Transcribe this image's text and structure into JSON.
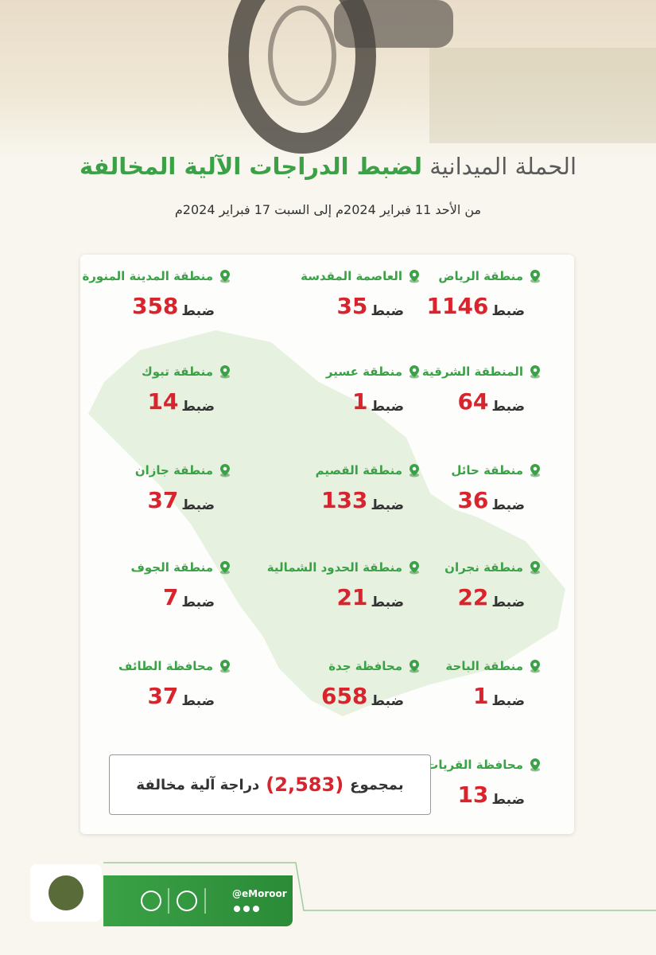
{
  "header": {
    "title_lead": "الحملة الميدانية",
    "title_emphasis": "لضبط الدراجات الآلية المخالفة",
    "subtitle": "من الأحد 11 فبراير 2024م إلى السبت 17 فبراير 2024م"
  },
  "count_word": "ضبط",
  "regions": [
    {
      "name": "منطقة الرياض",
      "count": "1146"
    },
    {
      "name": "العاصمة المقدسة",
      "count": "35"
    },
    {
      "name": "منطقة المدينة المنورة",
      "count": "358"
    },
    {
      "name": "المنطقة الشرقية",
      "count": "64"
    },
    {
      "name": "منطقة عسير",
      "count": "1"
    },
    {
      "name": "منطقة تبوك",
      "count": "14"
    },
    {
      "name": "منطقة حائل",
      "count": "36"
    },
    {
      "name": "منطقة القصيم",
      "count": "133"
    },
    {
      "name": "منطقة جازان",
      "count": "37"
    },
    {
      "name": "منطقة نجران",
      "count": "22"
    },
    {
      "name": "منطقة الحدود الشمالية",
      "count": "21"
    },
    {
      "name": "منطقة الجوف",
      "count": "7"
    },
    {
      "name": "منطقة الباحة",
      "count": "1"
    },
    {
      "name": "محافظة جدة",
      "count": "658"
    },
    {
      "name": "محافظة الطائف",
      "count": "37"
    },
    {
      "name": "محافظة القريات",
      "count": "13"
    }
  ],
  "total": {
    "prefix": "بمجموع",
    "value": "(2,583)",
    "suffix": "دراجة آلية مخالفة"
  },
  "footer": {
    "handle": "@eMoroor"
  }
}
